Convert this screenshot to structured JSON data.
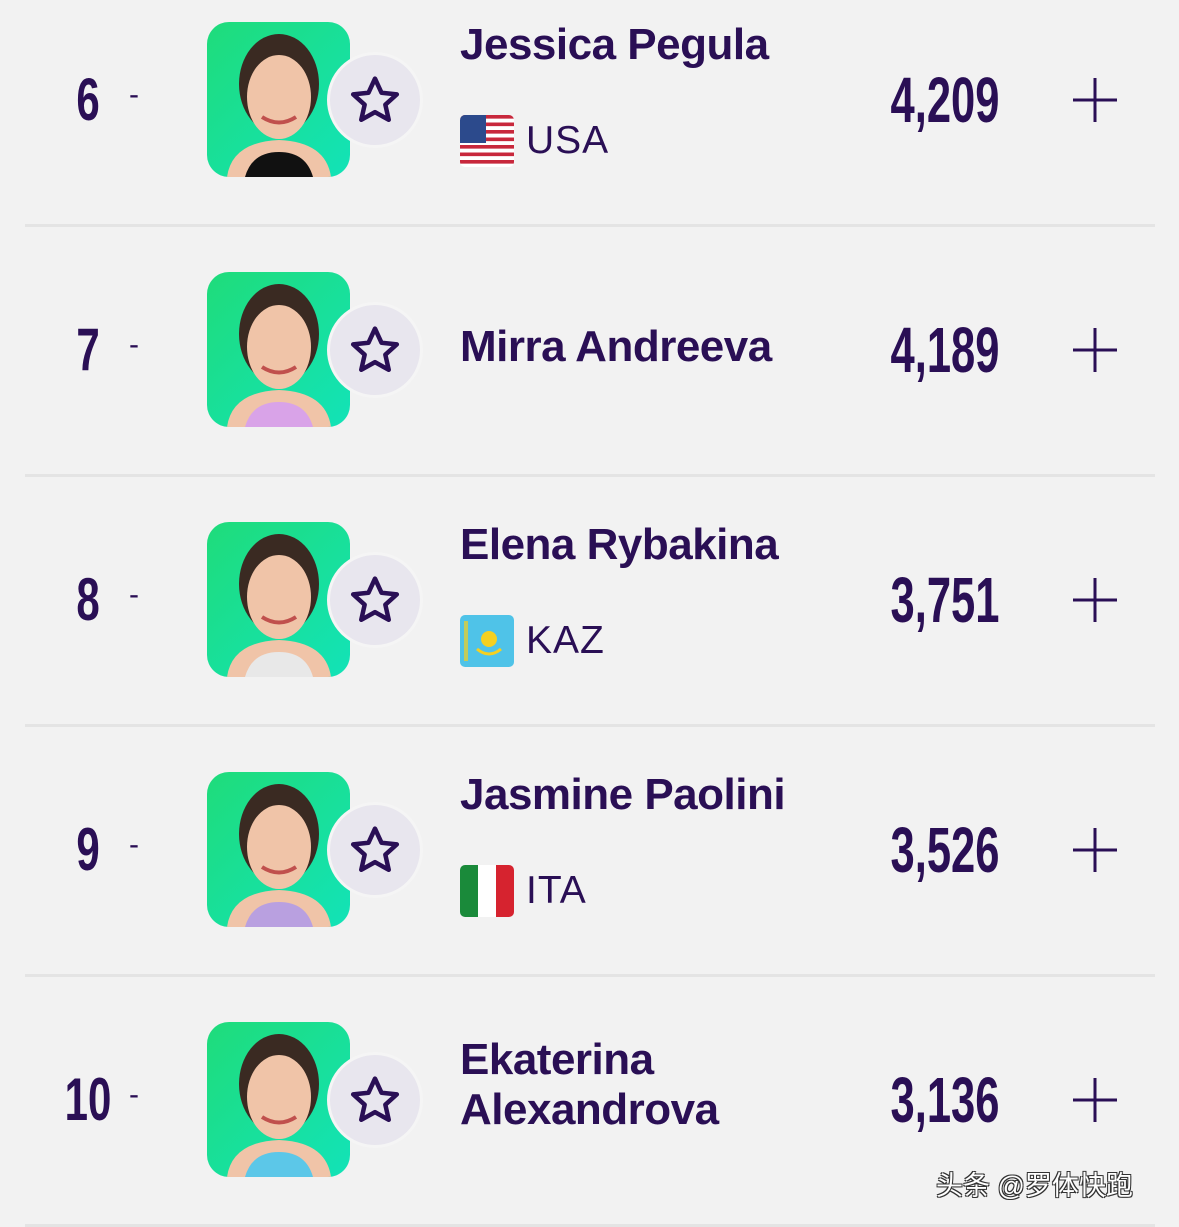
{
  "players": [
    {
      "rank": "6",
      "movement": "-",
      "name": "Jessica Pegula",
      "country": "USA",
      "flag": "usa-flag",
      "points": "4,209",
      "shirt": "#111111"
    },
    {
      "rank": "7",
      "movement": "-",
      "name": "Mirra Andreeva",
      "country": "",
      "flag": "",
      "points": "4,189",
      "shirt": "#d9a3e8"
    },
    {
      "rank": "8",
      "movement": "-",
      "name": "Elena Rybakina",
      "country": "KAZ",
      "flag": "kazakhstan-flag",
      "points": "3,751",
      "shirt": "#e8e8e8"
    },
    {
      "rank": "9",
      "movement": "-",
      "name": "Jasmine Paolini",
      "country": "ITA",
      "flag": "italy-flag",
      "points": "3,526",
      "shirt": "#b9a0e0"
    },
    {
      "rank": "10",
      "movement": "-",
      "name": "Ekaterina Alexandrova",
      "country": "",
      "flag": "",
      "points": "3,136",
      "shirt": "#5cc7e8"
    }
  ],
  "colors": {
    "text": "#2a0f55",
    "photo_bg": "#1fdc7a",
    "star_bg": "#e8e6ee",
    "background": "#f2f2f2"
  },
  "watermark": "头条 @罗体快跑"
}
